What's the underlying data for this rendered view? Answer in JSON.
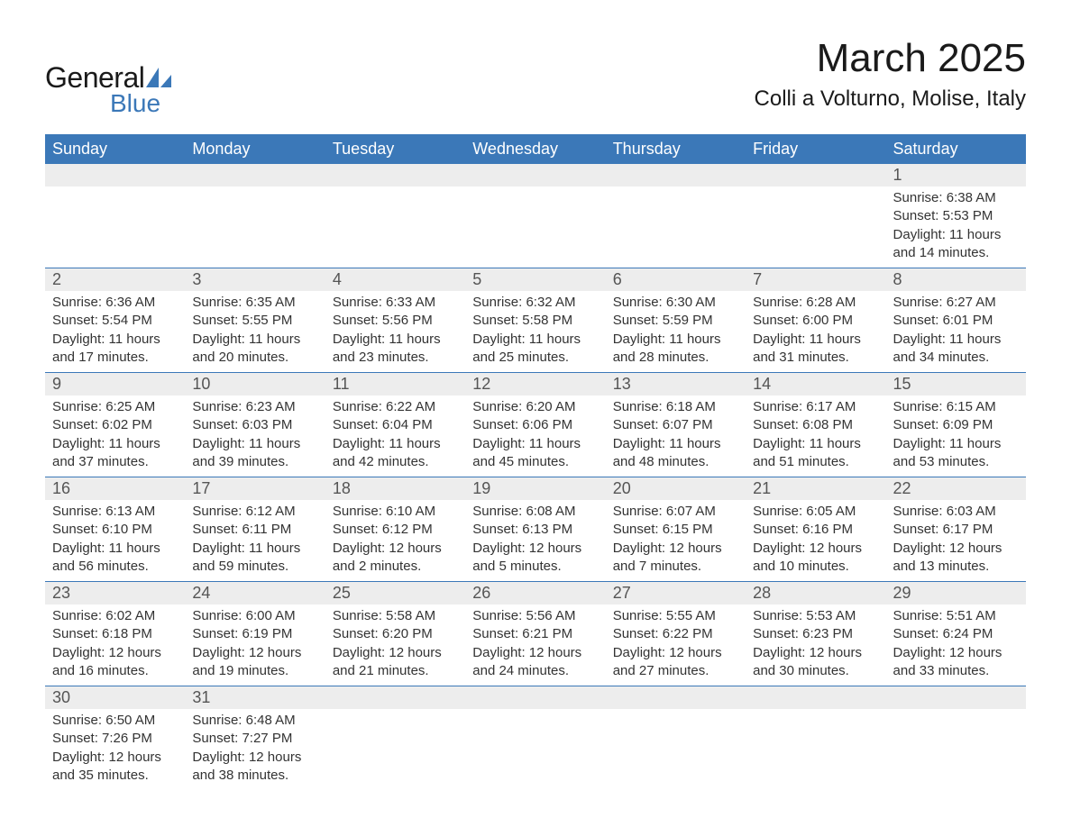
{
  "logo": {
    "word1": "General",
    "word2": "Blue",
    "mark_color": "#3b78b8",
    "text1_color": "#1a1a1a"
  },
  "title": "March 2025",
  "location": "Colli a Volturno, Molise, Italy",
  "colors": {
    "header_bg": "#3b78b8",
    "header_text": "#ffffff",
    "daynum_bg": "#ededed",
    "rule": "#3b78b8",
    "body_text": "#333333"
  },
  "weekdays": [
    "Sunday",
    "Monday",
    "Tuesday",
    "Wednesday",
    "Thursday",
    "Friday",
    "Saturday"
  ],
  "weeks": [
    [
      null,
      null,
      null,
      null,
      null,
      null,
      {
        "n": "1",
        "sunrise": "6:38 AM",
        "sunset": "5:53 PM",
        "dl": "11 hours and 14 minutes."
      }
    ],
    [
      {
        "n": "2",
        "sunrise": "6:36 AM",
        "sunset": "5:54 PM",
        "dl": "11 hours and 17 minutes."
      },
      {
        "n": "3",
        "sunrise": "6:35 AM",
        "sunset": "5:55 PM",
        "dl": "11 hours and 20 minutes."
      },
      {
        "n": "4",
        "sunrise": "6:33 AM",
        "sunset": "5:56 PM",
        "dl": "11 hours and 23 minutes."
      },
      {
        "n": "5",
        "sunrise": "6:32 AM",
        "sunset": "5:58 PM",
        "dl": "11 hours and 25 minutes."
      },
      {
        "n": "6",
        "sunrise": "6:30 AM",
        "sunset": "5:59 PM",
        "dl": "11 hours and 28 minutes."
      },
      {
        "n": "7",
        "sunrise": "6:28 AM",
        "sunset": "6:00 PM",
        "dl": "11 hours and 31 minutes."
      },
      {
        "n": "8",
        "sunrise": "6:27 AM",
        "sunset": "6:01 PM",
        "dl": "11 hours and 34 minutes."
      }
    ],
    [
      {
        "n": "9",
        "sunrise": "6:25 AM",
        "sunset": "6:02 PM",
        "dl": "11 hours and 37 minutes."
      },
      {
        "n": "10",
        "sunrise": "6:23 AM",
        "sunset": "6:03 PM",
        "dl": "11 hours and 39 minutes."
      },
      {
        "n": "11",
        "sunrise": "6:22 AM",
        "sunset": "6:04 PM",
        "dl": "11 hours and 42 minutes."
      },
      {
        "n": "12",
        "sunrise": "6:20 AM",
        "sunset": "6:06 PM",
        "dl": "11 hours and 45 minutes."
      },
      {
        "n": "13",
        "sunrise": "6:18 AM",
        "sunset": "6:07 PM",
        "dl": "11 hours and 48 minutes."
      },
      {
        "n": "14",
        "sunrise": "6:17 AM",
        "sunset": "6:08 PM",
        "dl": "11 hours and 51 minutes."
      },
      {
        "n": "15",
        "sunrise": "6:15 AM",
        "sunset": "6:09 PM",
        "dl": "11 hours and 53 minutes."
      }
    ],
    [
      {
        "n": "16",
        "sunrise": "6:13 AM",
        "sunset": "6:10 PM",
        "dl": "11 hours and 56 minutes."
      },
      {
        "n": "17",
        "sunrise": "6:12 AM",
        "sunset": "6:11 PM",
        "dl": "11 hours and 59 minutes."
      },
      {
        "n": "18",
        "sunrise": "6:10 AM",
        "sunset": "6:12 PM",
        "dl": "12 hours and 2 minutes."
      },
      {
        "n": "19",
        "sunrise": "6:08 AM",
        "sunset": "6:13 PM",
        "dl": "12 hours and 5 minutes."
      },
      {
        "n": "20",
        "sunrise": "6:07 AM",
        "sunset": "6:15 PM",
        "dl": "12 hours and 7 minutes."
      },
      {
        "n": "21",
        "sunrise": "6:05 AM",
        "sunset": "6:16 PM",
        "dl": "12 hours and 10 minutes."
      },
      {
        "n": "22",
        "sunrise": "6:03 AM",
        "sunset": "6:17 PM",
        "dl": "12 hours and 13 minutes."
      }
    ],
    [
      {
        "n": "23",
        "sunrise": "6:02 AM",
        "sunset": "6:18 PM",
        "dl": "12 hours and 16 minutes."
      },
      {
        "n": "24",
        "sunrise": "6:00 AM",
        "sunset": "6:19 PM",
        "dl": "12 hours and 19 minutes."
      },
      {
        "n": "25",
        "sunrise": "5:58 AM",
        "sunset": "6:20 PM",
        "dl": "12 hours and 21 minutes."
      },
      {
        "n": "26",
        "sunrise": "5:56 AM",
        "sunset": "6:21 PM",
        "dl": "12 hours and 24 minutes."
      },
      {
        "n": "27",
        "sunrise": "5:55 AM",
        "sunset": "6:22 PM",
        "dl": "12 hours and 27 minutes."
      },
      {
        "n": "28",
        "sunrise": "5:53 AM",
        "sunset": "6:23 PM",
        "dl": "12 hours and 30 minutes."
      },
      {
        "n": "29",
        "sunrise": "5:51 AM",
        "sunset": "6:24 PM",
        "dl": "12 hours and 33 minutes."
      }
    ],
    [
      {
        "n": "30",
        "sunrise": "6:50 AM",
        "sunset": "7:26 PM",
        "dl": "12 hours and 35 minutes."
      },
      {
        "n": "31",
        "sunrise": "6:48 AM",
        "sunset": "7:27 PM",
        "dl": "12 hours and 38 minutes."
      },
      null,
      null,
      null,
      null,
      null
    ]
  ],
  "labels": {
    "sunrise": "Sunrise: ",
    "sunset": "Sunset: ",
    "daylight": "Daylight: "
  }
}
